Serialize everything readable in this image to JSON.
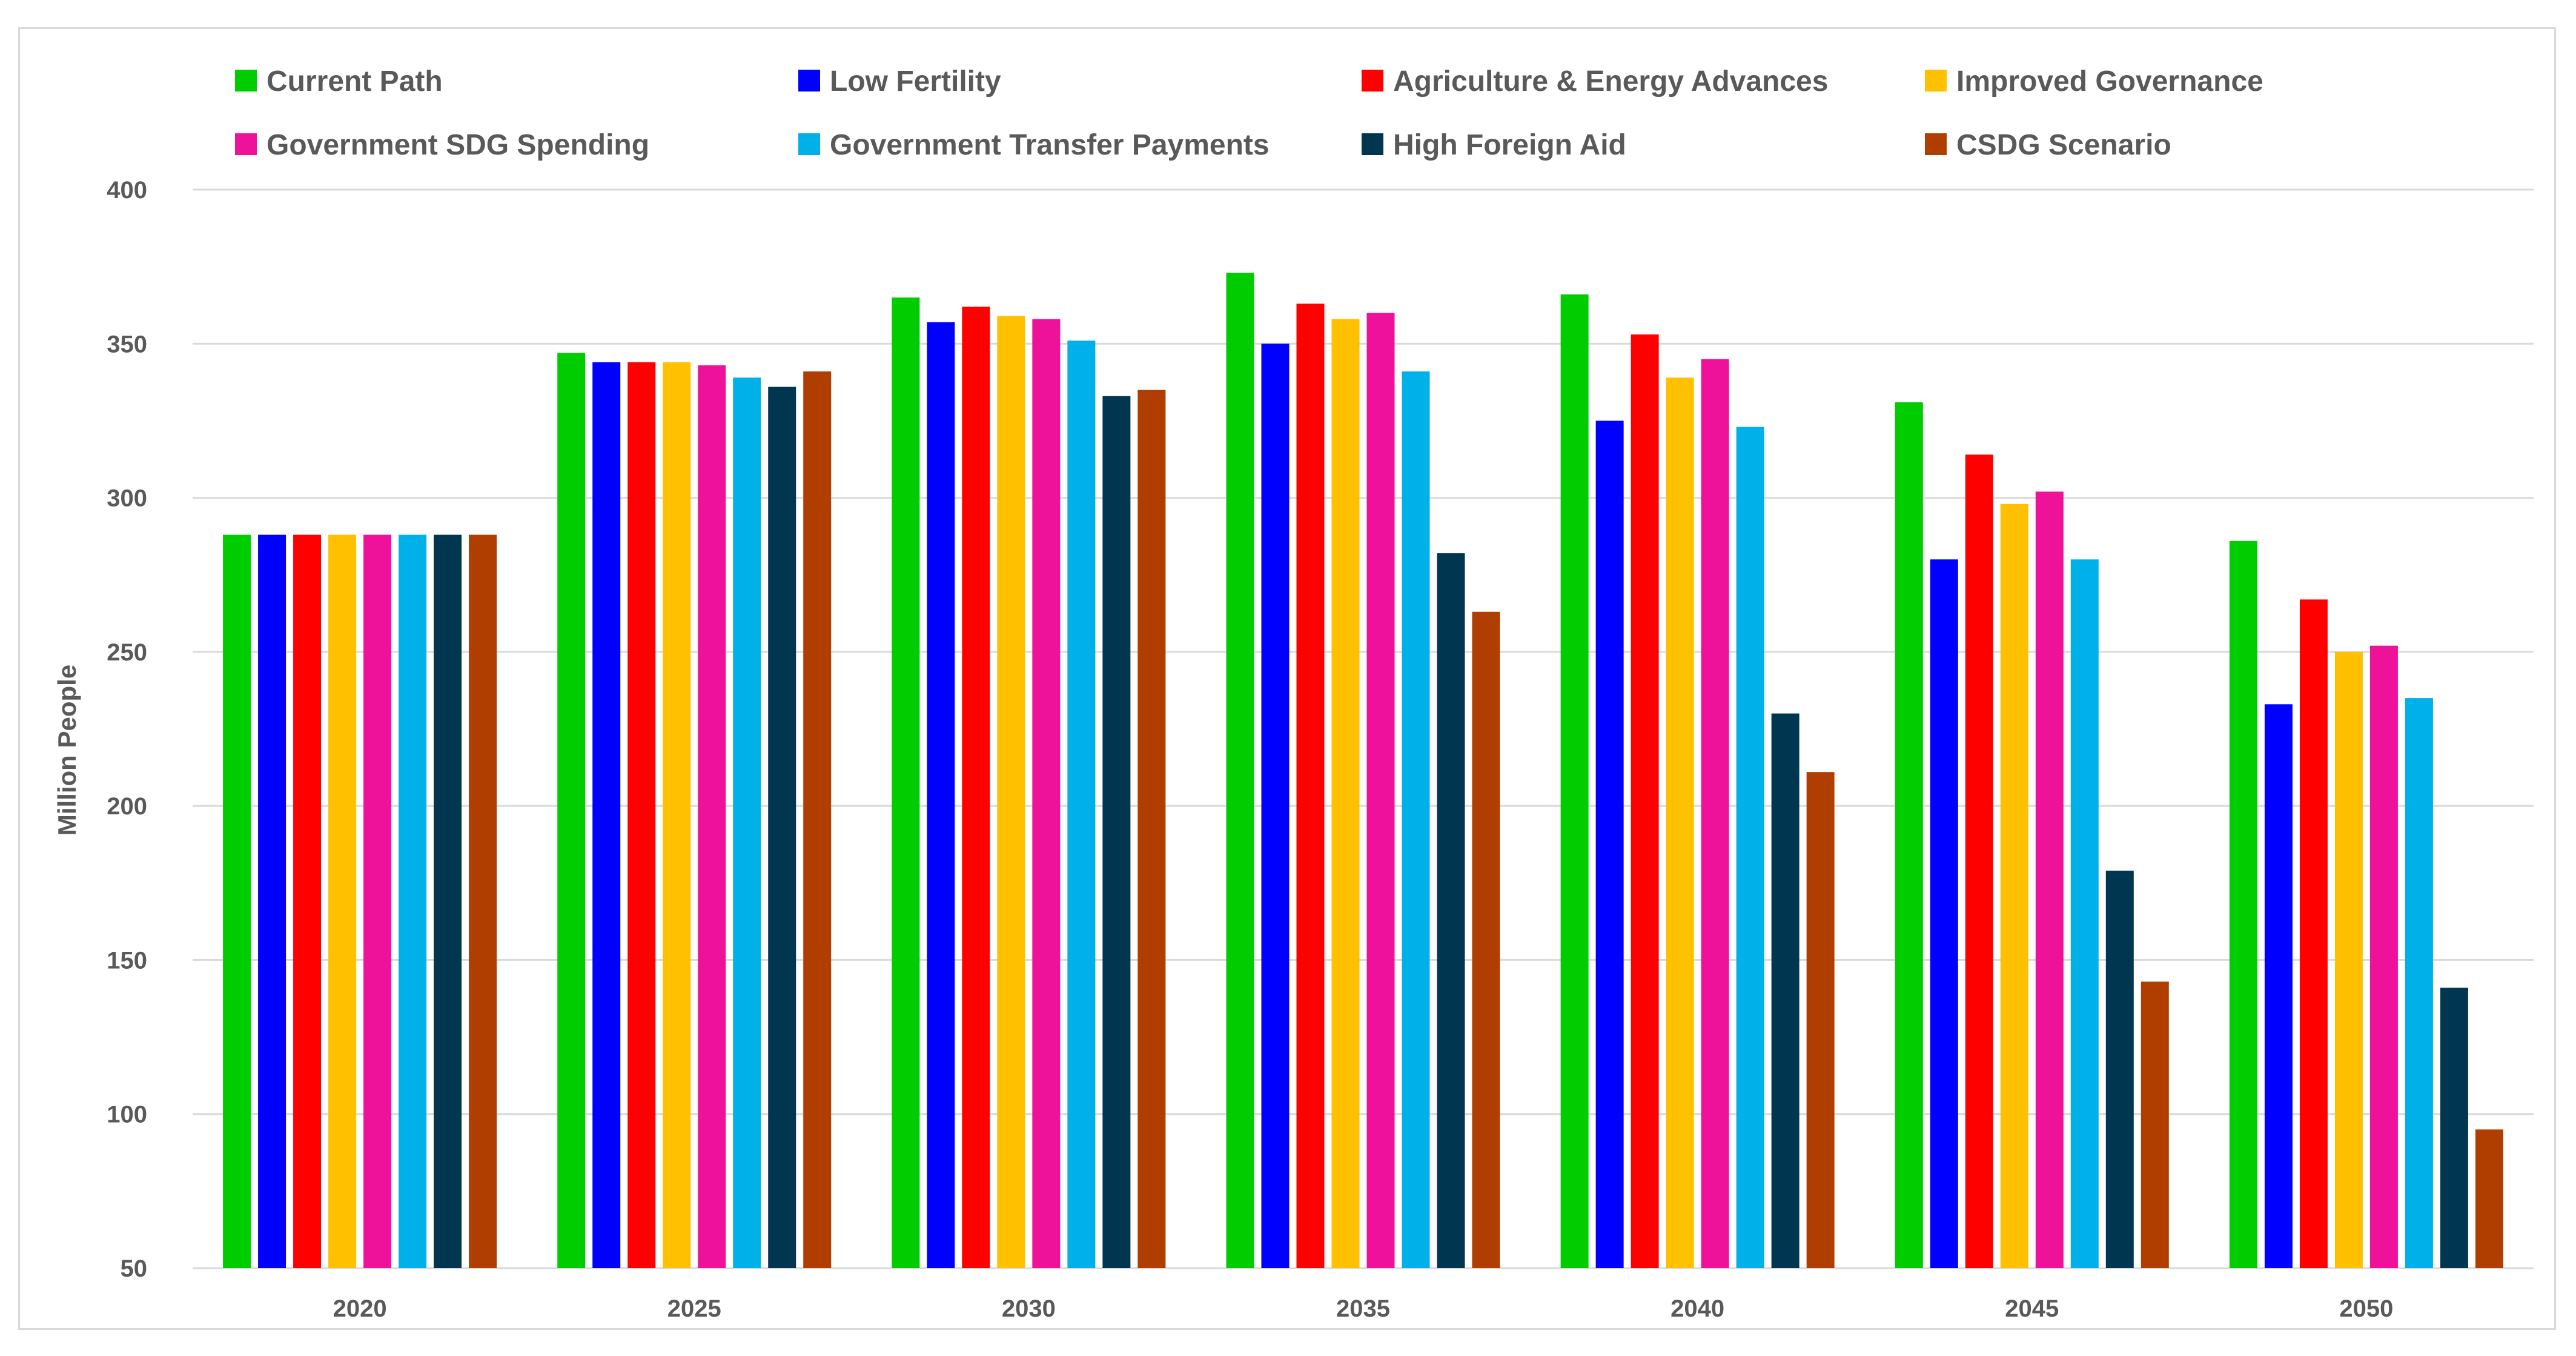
{
  "chart_data": {
    "type": "bar",
    "title": "",
    "xlabel": "",
    "ylabel": "Million People",
    "ylim": [
      50,
      400
    ],
    "yticks": [
      50,
      100,
      150,
      200,
      250,
      300,
      350,
      400
    ],
    "grid": true,
    "legend_position": "top",
    "categories": [
      "2020",
      "2025",
      "2030",
      "2035",
      "2040",
      "2045",
      "2050"
    ],
    "series": [
      {
        "name": "Current Path",
        "color": "#00cc00",
        "values": [
          288,
          347,
          365,
          373,
          366,
          331,
          286
        ]
      },
      {
        "name": "Low Fertility",
        "color": "#0000ff",
        "values": [
          288,
          344,
          357,
          350,
          325,
          280,
          233
        ]
      },
      {
        "name": "Agriculture & Energy Advances",
        "color": "#ff0000",
        "values": [
          288,
          344,
          362,
          363,
          353,
          314,
          267
        ]
      },
      {
        "name": "Improved Governance",
        "color": "#ffc000",
        "values": [
          288,
          344,
          359,
          358,
          339,
          298,
          250
        ]
      },
      {
        "name": "Government SDG Spending",
        "color": "#ee1199",
        "values": [
          288,
          343,
          358,
          360,
          345,
          302,
          252
        ]
      },
      {
        "name": "Government Transfer Payments",
        "color": "#00b0e8",
        "values": [
          288,
          339,
          351,
          341,
          323,
          280,
          235
        ]
      },
      {
        "name": "High Foreign Aid",
        "color": "#003650",
        "values": [
          288,
          336,
          333,
          282,
          230,
          179,
          141
        ]
      },
      {
        "name": "CSDG Scenario",
        "color": "#b03e00",
        "values": [
          288,
          341,
          335,
          263,
          211,
          143,
          95
        ]
      }
    ]
  }
}
